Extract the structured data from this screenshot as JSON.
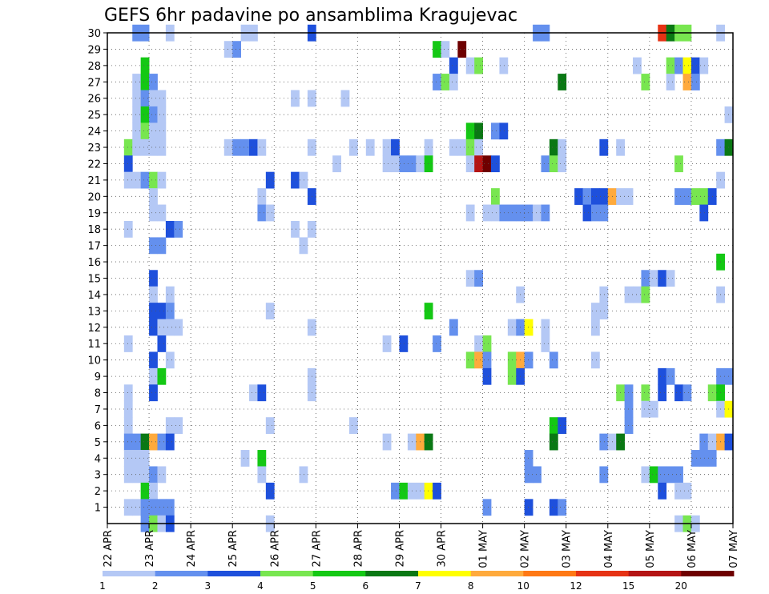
{
  "chart_data": {
    "type": "heatmap",
    "title": "GEFS 6hr padavine po ansamblima Kragujevac",
    "xlabel": "",
    "ylabel": "",
    "x_ticks": [
      "22 APR",
      "23 APR",
      "24 APR",
      "25 APR",
      "26 APR",
      "27 APR",
      "28 APR",
      "29 APR",
      "30 APR",
      "01 MAY",
      "02 MAY",
      "03 MAY",
      "04 MAY",
      "05 MAY",
      "06 MAY",
      "07 MAY"
    ],
    "y_ticks": [
      1,
      2,
      3,
      4,
      5,
      6,
      7,
      8,
      9,
      10,
      11,
      12,
      13,
      14,
      15,
      16,
      17,
      18,
      19,
      20,
      21,
      22,
      23,
      24,
      25,
      26,
      27,
      28,
      29,
      30
    ],
    "ylim": [
      0,
      30
    ],
    "xlim_days": [
      0,
      15
    ],
    "legend": {
      "labels": [
        "1",
        "2",
        "3",
        "4",
        "5",
        "6",
        "7",
        "8",
        "10",
        "12",
        "15",
        "20"
      ],
      "colors": [
        "#b4c8f5",
        "#6490ee",
        "#1e50dc",
        "#78e650",
        "#14c814",
        "#0a7814",
        "#ffff00",
        "#ffaa3c",
        "#ff7814",
        "#e63214",
        "#b41414",
        "#6e0000"
      ]
    },
    "grid": "dotted",
    "cells": [
      [
        0.6,
        30,
        2
      ],
      [
        0.8,
        30,
        2
      ],
      [
        1.4,
        30,
        1
      ],
      [
        3.2,
        30,
        1
      ],
      [
        3.4,
        30,
        1
      ],
      [
        4.8,
        30,
        3
      ],
      [
        10.2,
        30,
        2
      ],
      [
        10.4,
        30,
        2
      ],
      [
        13.2,
        30,
        10
      ],
      [
        13.4,
        30,
        6
      ],
      [
        13.6,
        30,
        4
      ],
      [
        13.8,
        30,
        4
      ],
      [
        14.6,
        30,
        1
      ],
      [
        2.8,
        29,
        1
      ],
      [
        3.0,
        29,
        2
      ],
      [
        7.8,
        29,
        5
      ],
      [
        8.0,
        29,
        1
      ],
      [
        8.4,
        29,
        12
      ],
      [
        0.8,
        28,
        5
      ],
      [
        8.2,
        28,
        3
      ],
      [
        8.6,
        28,
        1
      ],
      [
        8.8,
        28,
        4
      ],
      [
        9.4,
        28,
        1
      ],
      [
        12.6,
        28,
        1
      ],
      [
        13.4,
        28,
        4
      ],
      [
        13.6,
        28,
        2
      ],
      [
        13.8,
        28,
        7
      ],
      [
        14.0,
        28,
        3
      ],
      [
        14.2,
        28,
        1
      ],
      [
        0.6,
        27,
        1
      ],
      [
        0.8,
        27,
        5
      ],
      [
        1.0,
        27,
        2
      ],
      [
        7.8,
        27,
        2
      ],
      [
        8.0,
        27,
        4
      ],
      [
        8.2,
        27,
        1
      ],
      [
        10.8,
        27,
        6
      ],
      [
        12.8,
        27,
        4
      ],
      [
        13.4,
        27,
        1
      ],
      [
        13.8,
        27,
        8
      ],
      [
        14.0,
        27,
        2
      ],
      [
        0.6,
        26,
        1
      ],
      [
        0.8,
        26,
        2
      ],
      [
        1.0,
        26,
        1
      ],
      [
        1.2,
        26,
        1
      ],
      [
        4.4,
        26,
        1
      ],
      [
        4.8,
        26,
        1
      ],
      [
        5.6,
        26,
        1
      ],
      [
        0.6,
        25,
        1
      ],
      [
        0.8,
        25,
        5
      ],
      [
        1.0,
        25,
        2
      ],
      [
        1.2,
        25,
        1
      ],
      [
        14.8,
        25,
        1
      ],
      [
        0.6,
        24,
        1
      ],
      [
        0.8,
        24,
        4
      ],
      [
        1.0,
        24,
        1
      ],
      [
        1.2,
        24,
        1
      ],
      [
        8.6,
        24,
        5
      ],
      [
        8.8,
        24,
        6
      ],
      [
        9.2,
        24,
        2
      ],
      [
        9.4,
        24,
        3
      ],
      [
        0.4,
        23,
        4
      ],
      [
        0.6,
        23,
        1
      ],
      [
        0.8,
        23,
        1
      ],
      [
        1.0,
        23,
        1
      ],
      [
        1.2,
        23,
        1
      ],
      [
        2.8,
        23,
        1
      ],
      [
        3.0,
        23,
        2
      ],
      [
        3.2,
        23,
        2
      ],
      [
        3.4,
        23,
        3
      ],
      [
        3.6,
        23,
        1
      ],
      [
        4.8,
        23,
        1
      ],
      [
        5.8,
        23,
        1
      ],
      [
        6.2,
        23,
        1
      ],
      [
        6.6,
        23,
        1
      ],
      [
        6.8,
        23,
        3
      ],
      [
        7.6,
        23,
        1
      ],
      [
        8.2,
        23,
        1
      ],
      [
        8.4,
        23,
        1
      ],
      [
        8.6,
        23,
        4
      ],
      [
        8.8,
        23,
        1
      ],
      [
        10.6,
        23,
        6
      ],
      [
        10.8,
        23,
        1
      ],
      [
        11.8,
        23,
        3
      ],
      [
        12.2,
        23,
        1
      ],
      [
        14.6,
        23,
        2
      ],
      [
        14.8,
        23,
        6
      ],
      [
        0.4,
        22,
        3
      ],
      [
        5.4,
        22,
        1
      ],
      [
        6.6,
        22,
        1
      ],
      [
        6.8,
        22,
        1
      ],
      [
        7.0,
        22,
        2
      ],
      [
        7.2,
        22,
        2
      ],
      [
        7.4,
        22,
        1
      ],
      [
        7.6,
        22,
        5
      ],
      [
        8.6,
        22,
        1
      ],
      [
        8.8,
        22,
        11
      ],
      [
        9.0,
        22,
        12
      ],
      [
        9.2,
        22,
        3
      ],
      [
        10.4,
        22,
        2
      ],
      [
        10.6,
        22,
        4
      ],
      [
        10.8,
        22,
        1
      ],
      [
        13.6,
        22,
        4
      ],
      [
        0.4,
        21,
        1
      ],
      [
        0.6,
        21,
        1
      ],
      [
        0.8,
        21,
        2
      ],
      [
        1.0,
        21,
        4
      ],
      [
        1.2,
        21,
        1
      ],
      [
        3.8,
        21,
        3
      ],
      [
        4.4,
        21,
        3
      ],
      [
        4.6,
        21,
        1
      ],
      [
        14.6,
        21,
        1
      ],
      [
        1.0,
        20,
        1
      ],
      [
        3.6,
        20,
        1
      ],
      [
        4.8,
        20,
        3
      ],
      [
        9.2,
        20,
        4
      ],
      [
        11.2,
        20,
        3
      ],
      [
        11.4,
        20,
        2
      ],
      [
        11.6,
        20,
        3
      ],
      [
        11.8,
        20,
        3
      ],
      [
        12.0,
        20,
        8
      ],
      [
        12.2,
        20,
        1
      ],
      [
        12.4,
        20,
        1
      ],
      [
        13.6,
        20,
        2
      ],
      [
        13.8,
        20,
        2
      ],
      [
        14.0,
        20,
        4
      ],
      [
        14.2,
        20,
        4
      ],
      [
        14.4,
        20,
        3
      ],
      [
        1.0,
        19,
        1
      ],
      [
        1.2,
        19,
        1
      ],
      [
        3.6,
        19,
        2
      ],
      [
        3.8,
        19,
        1
      ],
      [
        8.6,
        19,
        1
      ],
      [
        9.0,
        19,
        1
      ],
      [
        9.2,
        19,
        1
      ],
      [
        9.4,
        19,
        2
      ],
      [
        9.6,
        19,
        2
      ],
      [
        9.8,
        19,
        2
      ],
      [
        10.0,
        19,
        2
      ],
      [
        10.2,
        19,
        1
      ],
      [
        10.4,
        19,
        2
      ],
      [
        11.4,
        19,
        3
      ],
      [
        11.6,
        19,
        2
      ],
      [
        11.8,
        19,
        2
      ],
      [
        14.2,
        19,
        3
      ],
      [
        0.4,
        18,
        1
      ],
      [
        1.4,
        18,
        3
      ],
      [
        1.6,
        18,
        2
      ],
      [
        4.4,
        18,
        1
      ],
      [
        4.8,
        18,
        1
      ],
      [
        1.0,
        17,
        2
      ],
      [
        1.2,
        17,
        2
      ],
      [
        4.6,
        17,
        1
      ],
      [
        14.6,
        16,
        5
      ],
      [
        1.0,
        15,
        3
      ],
      [
        8.6,
        15,
        1
      ],
      [
        8.8,
        15,
        2
      ],
      [
        12.8,
        15,
        2
      ],
      [
        13.0,
        15,
        1
      ],
      [
        13.2,
        15,
        3
      ],
      [
        13.4,
        15,
        1
      ],
      [
        1.0,
        14,
        1
      ],
      [
        1.4,
        14,
        1
      ],
      [
        9.8,
        14,
        1
      ],
      [
        11.8,
        14,
        1
      ],
      [
        12.4,
        14,
        1
      ],
      [
        12.6,
        14,
        1
      ],
      [
        12.8,
        14,
        4
      ],
      [
        14.6,
        14,
        1
      ],
      [
        1.0,
        13,
        3
      ],
      [
        1.2,
        13,
        3
      ],
      [
        1.4,
        13,
        2
      ],
      [
        3.8,
        13,
        1
      ],
      [
        7.6,
        13,
        5
      ],
      [
        11.6,
        13,
        1
      ],
      [
        11.8,
        13,
        1
      ],
      [
        1.0,
        12,
        3
      ],
      [
        1.2,
        12,
        1
      ],
      [
        1.4,
        12,
        1
      ],
      [
        1.6,
        12,
        1
      ],
      [
        4.8,
        12,
        1
      ],
      [
        8.2,
        12,
        2
      ],
      [
        9.6,
        12,
        1
      ],
      [
        9.8,
        12,
        2
      ],
      [
        10.0,
        12,
        7
      ],
      [
        10.4,
        12,
        1
      ],
      [
        11.6,
        12,
        1
      ],
      [
        0.4,
        11,
        1
      ],
      [
        1.2,
        11,
        3
      ],
      [
        6.6,
        11,
        1
      ],
      [
        7.0,
        11,
        3
      ],
      [
        7.8,
        11,
        2
      ],
      [
        8.8,
        11,
        1
      ],
      [
        9.0,
        11,
        4
      ],
      [
        10.4,
        11,
        1
      ],
      [
        1.0,
        10,
        3
      ],
      [
        1.4,
        10,
        1
      ],
      [
        8.6,
        10,
        4
      ],
      [
        8.8,
        10,
        8
      ],
      [
        9.0,
        10,
        2
      ],
      [
        9.6,
        10,
        4
      ],
      [
        9.8,
        10,
        8
      ],
      [
        10.0,
        10,
        2
      ],
      [
        10.6,
        10,
        2
      ],
      [
        11.6,
        10,
        1
      ],
      [
        1.0,
        9,
        1
      ],
      [
        1.2,
        9,
        5
      ],
      [
        4.8,
        9,
        1
      ],
      [
        9.0,
        9,
        3
      ],
      [
        9.6,
        9,
        4
      ],
      [
        9.8,
        9,
        3
      ],
      [
        13.2,
        9,
        3
      ],
      [
        13.4,
        9,
        2
      ],
      [
        14.6,
        9,
        2
      ],
      [
        14.8,
        9,
        2
      ],
      [
        0.4,
        8,
        1
      ],
      [
        1.0,
        8,
        3
      ],
      [
        3.4,
        8,
        1
      ],
      [
        3.6,
        8,
        3
      ],
      [
        4.8,
        8,
        1
      ],
      [
        12.2,
        8,
        4
      ],
      [
        12.4,
        8,
        2
      ],
      [
        12.8,
        8,
        4
      ],
      [
        13.2,
        8,
        3
      ],
      [
        13.6,
        8,
        3
      ],
      [
        13.8,
        8,
        2
      ],
      [
        14.4,
        8,
        4
      ],
      [
        14.6,
        8,
        5
      ],
      [
        0.4,
        7,
        1
      ],
      [
        12.4,
        7,
        2
      ],
      [
        12.8,
        7,
        1
      ],
      [
        13.0,
        7,
        1
      ],
      [
        14.6,
        7,
        1
      ],
      [
        14.8,
        7,
        7
      ],
      [
        0.4,
        6,
        1
      ],
      [
        1.4,
        6,
        1
      ],
      [
        1.6,
        6,
        1
      ],
      [
        3.8,
        6,
        1
      ],
      [
        5.8,
        6,
        1
      ],
      [
        10.6,
        6,
        5
      ],
      [
        10.8,
        6,
        3
      ],
      [
        12.4,
        6,
        2
      ],
      [
        0.4,
        5,
        2
      ],
      [
        0.6,
        5,
        2
      ],
      [
        0.8,
        5,
        6
      ],
      [
        1.0,
        5,
        8
      ],
      [
        1.2,
        5,
        2
      ],
      [
        1.4,
        5,
        3
      ],
      [
        6.6,
        5,
        1
      ],
      [
        7.2,
        5,
        1
      ],
      [
        7.4,
        5,
        8
      ],
      [
        7.6,
        5,
        6
      ],
      [
        10.6,
        5,
        6
      ],
      [
        11.8,
        5,
        2
      ],
      [
        12.0,
        5,
        1
      ],
      [
        12.2,
        5,
        6
      ],
      [
        14.2,
        5,
        2
      ],
      [
        14.4,
        5,
        1
      ],
      [
        14.6,
        5,
        8
      ],
      [
        14.8,
        5,
        3
      ],
      [
        0.4,
        4,
        1
      ],
      [
        0.6,
        4,
        1
      ],
      [
        0.8,
        4,
        1
      ],
      [
        3.2,
        4,
        1
      ],
      [
        3.6,
        4,
        5
      ],
      [
        10.0,
        4,
        2
      ],
      [
        14.0,
        4,
        2
      ],
      [
        14.2,
        4,
        2
      ],
      [
        14.4,
        4,
        2
      ],
      [
        0.4,
        3,
        1
      ],
      [
        0.6,
        3,
        1
      ],
      [
        0.8,
        3,
        1
      ],
      [
        1.0,
        3,
        2
      ],
      [
        1.2,
        3,
        1
      ],
      [
        3.6,
        3,
        1
      ],
      [
        4.6,
        3,
        1
      ],
      [
        10.0,
        3,
        2
      ],
      [
        10.2,
        3,
        2
      ],
      [
        11.8,
        3,
        2
      ],
      [
        12.8,
        3,
        1
      ],
      [
        13.0,
        3,
        5
      ],
      [
        13.2,
        3,
        2
      ],
      [
        13.4,
        3,
        2
      ],
      [
        13.6,
        3,
        2
      ],
      [
        0.8,
        2,
        5
      ],
      [
        1.0,
        2,
        1
      ],
      [
        3.8,
        2,
        3
      ],
      [
        6.8,
        2,
        2
      ],
      [
        7.0,
        2,
        5
      ],
      [
        7.2,
        2,
        1
      ],
      [
        7.4,
        2,
        1
      ],
      [
        7.6,
        2,
        7
      ],
      [
        7.8,
        2,
        3
      ],
      [
        13.2,
        2,
        3
      ],
      [
        13.6,
        2,
        1
      ],
      [
        13.8,
        2,
        1
      ],
      [
        0.4,
        1,
        1
      ],
      [
        0.6,
        1,
        1
      ],
      [
        0.8,
        1,
        2
      ],
      [
        1.0,
        1,
        2
      ],
      [
        1.2,
        1,
        2
      ],
      [
        1.4,
        1,
        2
      ],
      [
        9.0,
        1,
        2
      ],
      [
        10.0,
        1,
        3
      ],
      [
        10.6,
        1,
        3
      ],
      [
        10.8,
        1,
        2
      ],
      [
        0.8,
        0,
        2
      ],
      [
        1.0,
        0,
        4
      ],
      [
        1.2,
        0,
        1
      ],
      [
        1.4,
        0,
        3
      ],
      [
        3.8,
        0,
        1
      ],
      [
        13.6,
        0,
        1
      ],
      [
        13.8,
        0,
        4
      ],
      [
        14.0,
        0,
        1
      ]
    ]
  }
}
